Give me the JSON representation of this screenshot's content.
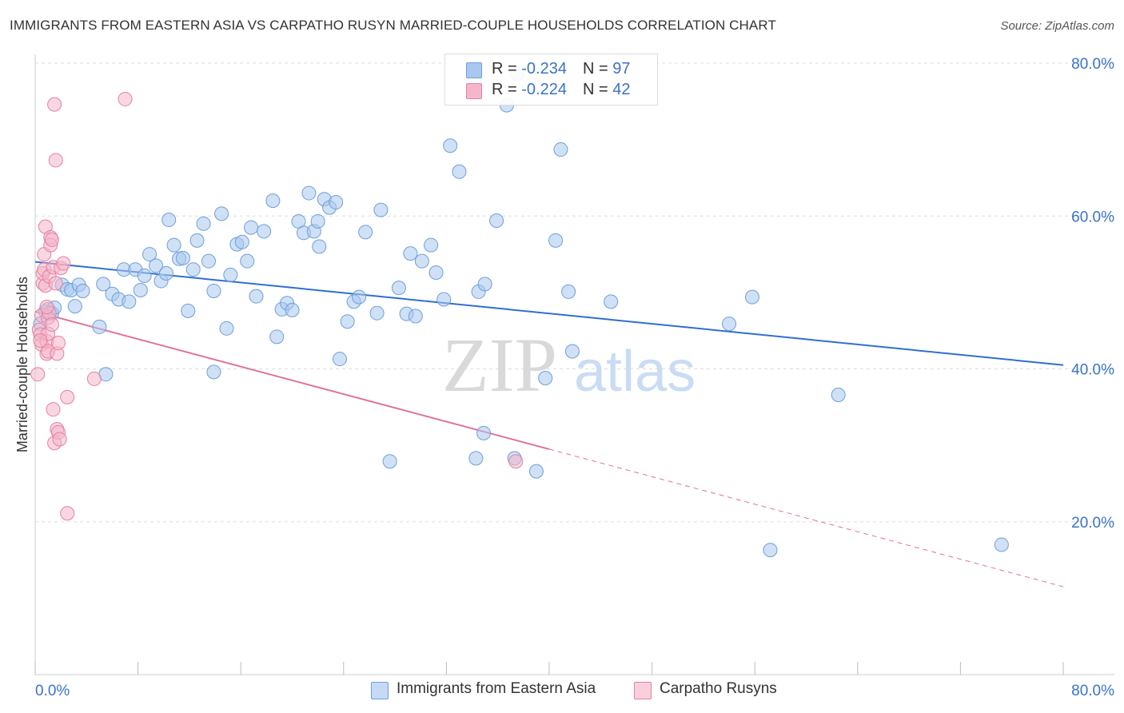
{
  "header": {
    "title": "IMMIGRANTS FROM EASTERN ASIA VS CARPATHO RUSYN MARRIED-COUPLE HOUSEHOLDS CORRELATION CHART",
    "source": "Source: ZipAtlas.com"
  },
  "watermark": {
    "zip": "ZIP",
    "atlas": "atlas"
  },
  "legend": {
    "rows": [
      {
        "r_label": "R = ",
        "r_value": "-0.234",
        "n_label": "N = ",
        "n_value": "97",
        "color": "#a9c8ef"
      },
      {
        "r_label": "R = ",
        "r_value": "-0.224",
        "n_label": "N = ",
        "n_value": "42",
        "color": "#f4b6ca"
      }
    ]
  },
  "bottom_legend": {
    "items": [
      {
        "label": "Immigrants from Eastern Asia",
        "color": "#a9c8ef"
      },
      {
        "label": "Carpatho Rusyns",
        "color": "#f4b6ca"
      }
    ]
  },
  "colors": {
    "blue_fill": "#a9c8ef",
    "blue_stroke": "#6d9fdc",
    "blue_line": "#2f6fcf",
    "pink_fill": "#f4b6ca",
    "pink_stroke": "#e5809f",
    "pink_line": "#e0709a",
    "grid": "#dddddd",
    "tick_text": "#3a73c7"
  },
  "chart_data": {
    "type": "scatter",
    "title": "IMMIGRANTS FROM EASTERN ASIA VS CARPATHO RUSYN MARRIED-COUPLE HOUSEHOLDS CORRELATION CHART",
    "xlabel": "",
    "ylabel": "Married-couple Households",
    "xlim": [
      0,
      80
    ],
    "ylim": [
      0,
      80
    ],
    "x_tick_labels": [
      "0.0%",
      "80.0%"
    ],
    "y_tick_values": [
      20,
      40,
      60,
      80
    ],
    "y_tick_labels": [
      "20.0%",
      "40.0%",
      "60.0%",
      "80.0%"
    ],
    "grid": true,
    "legend_position": "top-center",
    "series": [
      {
        "name": "Immigrants from Eastern Asia",
        "color": "#a9c8ef",
        "trend": {
          "x": [
            0,
            80
          ],
          "y": [
            54.0,
            40.5
          ],
          "style": "solid"
        },
        "points": [
          [
            0.4,
            45.9
          ],
          [
            0.8,
            47.5
          ],
          [
            1.0,
            47.8
          ],
          [
            1.3,
            47.3
          ],
          [
            1.5,
            48.0
          ],
          [
            2.1,
            51.0
          ],
          [
            2.5,
            50.4
          ],
          [
            2.8,
            50.3
          ],
          [
            3.1,
            48.2
          ],
          [
            3.4,
            51.0
          ],
          [
            3.7,
            50.2
          ],
          [
            5.3,
            51.1
          ],
          [
            5.0,
            45.5
          ],
          [
            6.0,
            49.8
          ],
          [
            6.5,
            49.1
          ],
          [
            6.9,
            53.0
          ],
          [
            7.3,
            48.8
          ],
          [
            7.8,
            53.0
          ],
          [
            8.2,
            50.3
          ],
          [
            8.5,
            52.2
          ],
          [
            8.9,
            55.0
          ],
          [
            9.4,
            53.5
          ],
          [
            9.8,
            51.5
          ],
          [
            10.2,
            52.5
          ],
          [
            10.4,
            59.5
          ],
          [
            10.8,
            56.2
          ],
          [
            11.2,
            54.4
          ],
          [
            11.5,
            54.5
          ],
          [
            11.9,
            47.6
          ],
          [
            12.3,
            53.0
          ],
          [
            12.6,
            56.8
          ],
          [
            13.1,
            59.0
          ],
          [
            13.5,
            54.1
          ],
          [
            13.9,
            50.2
          ],
          [
            14.5,
            60.3
          ],
          [
            14.9,
            45.3
          ],
          [
            15.2,
            52.3
          ],
          [
            15.7,
            56.3
          ],
          [
            16.1,
            56.6
          ],
          [
            16.5,
            54.1
          ],
          [
            16.8,
            58.5
          ],
          [
            17.2,
            49.5
          ],
          [
            17.8,
            58.0
          ],
          [
            18.5,
            62.0
          ],
          [
            18.8,
            44.2
          ],
          [
            19.2,
            47.8
          ],
          [
            19.6,
            48.6
          ],
          [
            20.0,
            47.7
          ],
          [
            20.5,
            59.3
          ],
          [
            20.9,
            57.8
          ],
          [
            21.3,
            63.0
          ],
          [
            21.7,
            58.0
          ],
          [
            22.1,
            56.0
          ],
          [
            22.5,
            62.2
          ],
          [
            22.9,
            61.1
          ],
          [
            23.4,
            61.8
          ],
          [
            23.7,
            41.3
          ],
          [
            24.3,
            46.2
          ],
          [
            24.8,
            48.8
          ],
          [
            25.2,
            49.4
          ],
          [
            25.7,
            57.9
          ],
          [
            26.6,
            47.3
          ],
          [
            26.9,
            60.8
          ],
          [
            27.6,
            27.9
          ],
          [
            28.3,
            50.6
          ],
          [
            28.9,
            47.2
          ],
          [
            29.2,
            55.1
          ],
          [
            29.6,
            46.9
          ],
          [
            30.1,
            54.1
          ],
          [
            30.8,
            56.2
          ],
          [
            31.2,
            52.6
          ],
          [
            31.8,
            49.1
          ],
          [
            32.3,
            69.2
          ],
          [
            33.0,
            65.8
          ],
          [
            34.5,
            50.1
          ],
          [
            35.0,
            51.1
          ],
          [
            34.3,
            28.3
          ],
          [
            34.9,
            31.6
          ],
          [
            35.9,
            59.4
          ],
          [
            36.7,
            74.5
          ],
          [
            37.3,
            28.3
          ],
          [
            39.0,
            26.6
          ],
          [
            39.7,
            38.8
          ],
          [
            40.5,
            56.8
          ],
          [
            40.9,
            68.7
          ],
          [
            41.8,
            42.3
          ],
          [
            41.5,
            50.1
          ],
          [
            37.5,
            78.6
          ],
          [
            44.8,
            48.8
          ],
          [
            54.0,
            45.9
          ],
          [
            55.8,
            49.4
          ],
          [
            57.2,
            16.3
          ],
          [
            62.5,
            36.6
          ],
          [
            75.2,
            17.0
          ],
          [
            5.5,
            39.3
          ],
          [
            13.9,
            39.6
          ],
          [
            22.0,
            59.3
          ]
        ]
      },
      {
        "name": "Carpatho Rusyns",
        "color": "#f4b6ca",
        "trend": {
          "x": [
            0,
            40
          ],
          "y": [
            47.5,
            29.5
          ],
          "style": "solid",
          "dashed_extension": {
            "x": [
              40,
              80
            ],
            "y": [
              29.5,
              11.5
            ]
          }
        },
        "points": [
          [
            0.2,
            39.3
          ],
          [
            0.3,
            45.1
          ],
          [
            0.4,
            44.5
          ],
          [
            0.5,
            43.2
          ],
          [
            0.5,
            47.0
          ],
          [
            0.6,
            51.2
          ],
          [
            0.6,
            52.5
          ],
          [
            0.7,
            53.0
          ],
          [
            0.7,
            55.0
          ],
          [
            0.8,
            58.6
          ],
          [
            0.8,
            50.9
          ],
          [
            0.9,
            43.6
          ],
          [
            0.9,
            42.0
          ],
          [
            1.0,
            46.7
          ],
          [
            1.0,
            44.6
          ],
          [
            1.0,
            42.3
          ],
          [
            1.1,
            52.1
          ],
          [
            1.1,
            47.3
          ],
          [
            1.2,
            57.2
          ],
          [
            1.2,
            56.2
          ],
          [
            1.3,
            56.9
          ],
          [
            1.4,
            53.3
          ],
          [
            1.4,
            34.7
          ],
          [
            1.5,
            30.3
          ],
          [
            1.6,
            67.3
          ],
          [
            1.7,
            32.1
          ],
          [
            1.8,
            31.7
          ],
          [
            1.9,
            30.8
          ],
          [
            1.5,
            74.6
          ],
          [
            1.7,
            42.0
          ],
          [
            1.8,
            43.4
          ],
          [
            2.0,
            53.2
          ],
          [
            2.2,
            53.8
          ],
          [
            2.5,
            36.3
          ],
          [
            2.5,
            21.1
          ],
          [
            4.6,
            38.7
          ],
          [
            7.0,
            75.3
          ],
          [
            0.4,
            43.7
          ],
          [
            0.9,
            48.1
          ],
          [
            1.3,
            45.8
          ],
          [
            1.6,
            51.2
          ],
          [
            37.4,
            27.9
          ]
        ]
      }
    ]
  }
}
